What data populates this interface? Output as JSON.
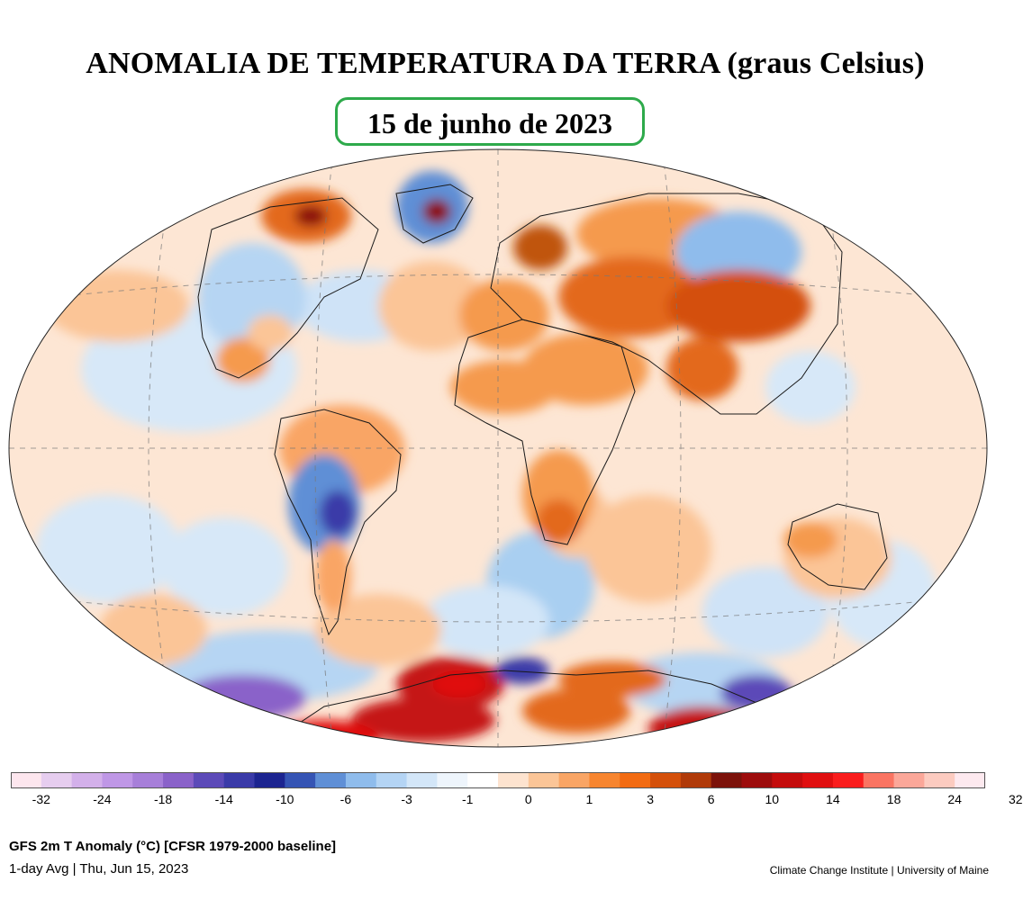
{
  "title": "ANOMALIA DE TEMPERATURA DA TERRA (graus Celsius)",
  "date_label": "15 de junho de 2023",
  "footer": {
    "line1": "GFS 2m T Anomaly (°C) [CFSR 1979-2000 baseline]",
    "line2": "1-day Avg | Thu, Jun 15, 2023",
    "credit": "Climate Change Institute | University of Maine"
  },
  "colorbar": {
    "colors": [
      "#fde6ee",
      "#e6cdef",
      "#d3b0ea",
      "#bf97e6",
      "#a77fd9",
      "#8a62c9",
      "#5c4ab8",
      "#3a3aa8",
      "#1c2490",
      "#3554b4",
      "#5f8fd6",
      "#8fbcec",
      "#b4d4f4",
      "#d3e6f8",
      "#eef5fc",
      "#ffffff",
      "#fde3cf",
      "#fbc597",
      "#f9a565",
      "#f7852f",
      "#f26b12",
      "#d4500a",
      "#b03a09",
      "#7c120a",
      "#9d0c0c",
      "#c40c0c",
      "#e00f10",
      "#fa1d1d",
      "#fa7462",
      "#fba799",
      "#fccbc0",
      "#fde9ef"
    ],
    "tick_labels": [
      "-32",
      "-24",
      "-18",
      "-14",
      "-10",
      "-6",
      "-3",
      "-1",
      "0",
      "1",
      "3",
      "6",
      "10",
      "14",
      "18",
      "24",
      "32"
    ]
  },
  "palette": {
    "ocean_base": "#fde6d4",
    "warm_light": "#fbc597",
    "warm": "#f59a4e",
    "warm_strong": "#e3691b",
    "hot": "#c51212",
    "hot_dark": "#8b0d0d",
    "cool_light": "#d7e8f8",
    "cool": "#9cc6ee",
    "cold": "#5f8fd6",
    "cold_strong": "#3a3aa8",
    "violet": "#8a62c9",
    "outline_green": "#2eaa4b"
  }
}
